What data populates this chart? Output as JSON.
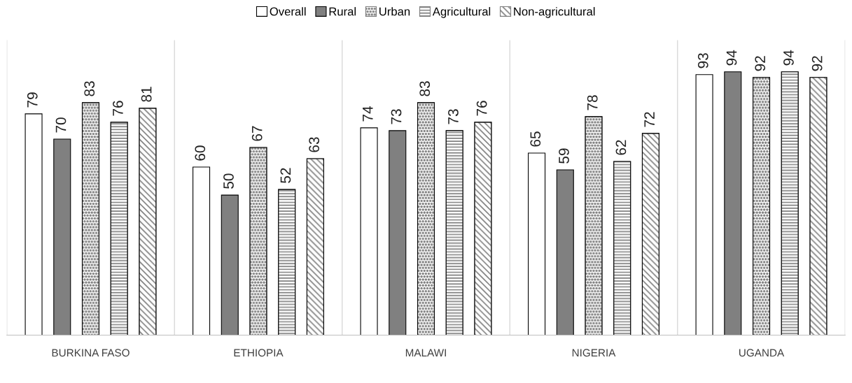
{
  "chart_data": {
    "type": "bar",
    "categories": [
      "BURKINA FASO",
      "ETHIOPIA",
      "MALAWI",
      "NIGERIA",
      "UGANDA"
    ],
    "series": [
      {
        "name": "Overall",
        "color": "#ffffff",
        "values": [
          79,
          60,
          74,
          65,
          93
        ]
      },
      {
        "name": "Rural",
        "color": "#808080",
        "values": [
          70,
          50,
          73,
          59,
          94
        ]
      },
      {
        "name": "Urban",
        "color": "#7f7f7f",
        "values": [
          83,
          67,
          83,
          78,
          92
        ]
      },
      {
        "name": "Agricultural",
        "color": "#7f7f7f",
        "values": [
          76,
          52,
          73,
          62,
          94
        ]
      },
      {
        "name": "Non-agricultural",
        "color": "#7f7f7f",
        "values": [
          81,
          63,
          76,
          72,
          92
        ]
      }
    ],
    "data_labels": true,
    "grid": "x",
    "legend": "top"
  }
}
